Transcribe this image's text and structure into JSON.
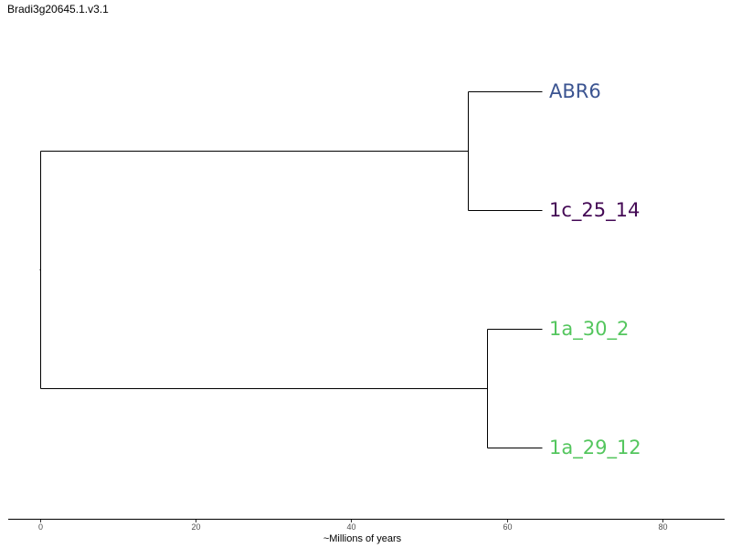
{
  "title": "Bradi3g20645.1.v3.1",
  "axis": {
    "label": "~Millions of years",
    "ticks": [
      0,
      20,
      40,
      60,
      80
    ],
    "range": [
      -4,
      88
    ]
  },
  "tree": {
    "leaves": [
      {
        "id": "leaf-abr6",
        "label": "ABR6",
        "color": "#3b5491",
        "x": 64.5
      },
      {
        "id": "leaf-1c-25-14",
        "label": "1c_25_14",
        "color": "#440a55",
        "x": 64.5
      },
      {
        "id": "leaf-1a-30-2",
        "label": "1a_30_2",
        "color": "#54c65e",
        "x": 64.5
      },
      {
        "id": "leaf-1a-29-12",
        "label": "1a_29_12",
        "color": "#54c65e",
        "x": 64.5
      }
    ],
    "internal_nodes": [
      {
        "id": "root",
        "x": 0,
        "children": [
          "clade-a",
          "clade-b"
        ]
      },
      {
        "id": "clade-a",
        "x": 55.0,
        "children": [
          "leaf-abr6",
          "leaf-1c-25-14"
        ]
      },
      {
        "id": "clade-b",
        "x": 57.5,
        "children": [
          "leaf-1a-30-2",
          "leaf-1a-29-12"
        ]
      }
    ]
  }
}
